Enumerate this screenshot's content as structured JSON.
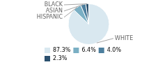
{
  "chart_data": {
    "type": "pie",
    "categories": [
      "WHITE",
      "HISPANIC",
      "ASIAN",
      "BLACK"
    ],
    "values": [
      87.3,
      6.4,
      4.0,
      2.3
    ],
    "value_labels": [
      "87.3%",
      "6.4%",
      "4.0%",
      "2.3%"
    ],
    "colors": [
      "#d9e8f0",
      "#7aafc4",
      "#4d7f9e",
      "#2b506e"
    ],
    "legend": "lower left"
  }
}
